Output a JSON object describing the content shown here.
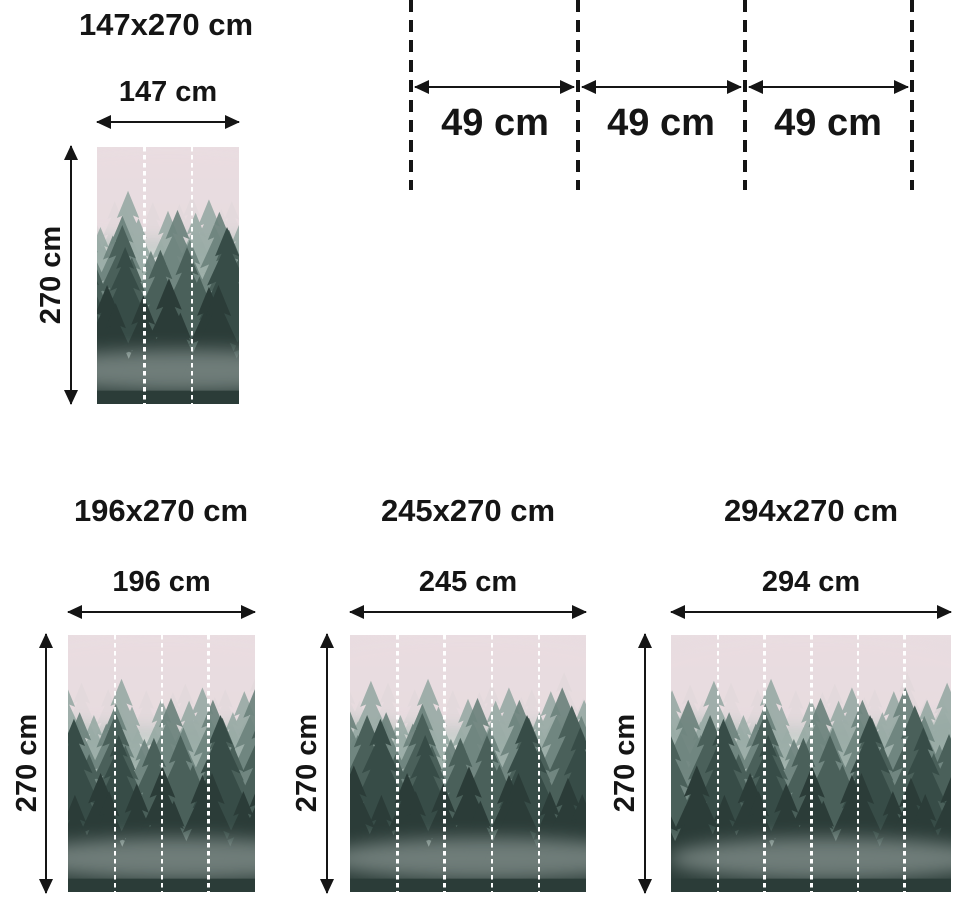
{
  "page": {
    "background": "#ffffff",
    "text_color": "#151515"
  },
  "image_motif": {
    "name": "foggy-forest-mural",
    "description": "Misty coniferous forest photograph used as wall mural preview",
    "palette": {
      "sky_top_pink": "#eadde1",
      "fog_white": "#eef0ee",
      "trees_far": "#b3c0bb",
      "trees_mid": "#6d837d",
      "trees_near": "#4a605a",
      "trees_foreground": "#2b3c38"
    }
  },
  "panel_diagram": {
    "segment_labels": [
      "49 cm",
      "49 cm",
      "49 cm"
    ]
  },
  "sizes": [
    {
      "title": "147x270 cm",
      "width_label": "147 cm",
      "height_label": "270 cm",
      "panels": 3
    },
    {
      "title": "196x270 cm",
      "width_label": "196 cm",
      "height_label": "270 cm",
      "panels": 4
    },
    {
      "title": "245x270 cm",
      "width_label": "245 cm",
      "height_label": "270 cm",
      "panels": 5
    },
    {
      "title": "294x270 cm",
      "width_label": "294 cm",
      "height_label": "270 cm",
      "panels": 6
    }
  ]
}
